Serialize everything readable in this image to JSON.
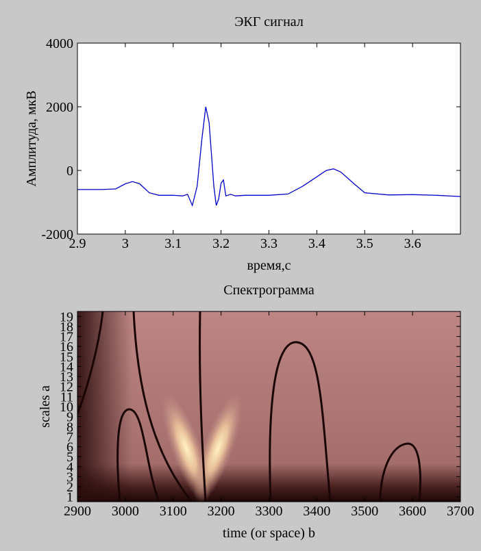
{
  "chart_data": [
    {
      "type": "line",
      "title": "ЭКГ сигнал",
      "xlabel": "время,с",
      "ylabel": "Амплитуда, мкВ",
      "x": [
        2.9,
        2.95,
        2.98,
        3.0,
        3.015,
        3.03,
        3.05,
        3.07,
        3.1,
        3.12,
        3.13,
        3.14,
        3.15,
        3.16,
        3.168,
        3.175,
        3.185,
        3.19,
        3.195,
        3.2,
        3.205,
        3.21,
        3.22,
        3.23,
        3.25,
        3.3,
        3.34,
        3.37,
        3.4,
        3.42,
        3.435,
        3.45,
        3.48,
        3.5,
        3.55,
        3.6,
        3.65,
        3.7
      ],
      "values": [
        -600,
        -600,
        -580,
        -420,
        -350,
        -420,
        -700,
        -780,
        -780,
        -800,
        -750,
        -1100,
        -500,
        1000,
        2000,
        1500,
        -500,
        -1100,
        -900,
        -400,
        -300,
        -800,
        -750,
        -800,
        -780,
        -780,
        -740,
        -500,
        -200,
        0,
        50,
        -50,
        -450,
        -700,
        -770,
        -760,
        -780,
        -820
      ],
      "color": "#0000cc",
      "xlim": [
        2.9,
        3.7
      ],
      "xticks": [
        2.9,
        3,
        3.1,
        3.2,
        3.3,
        3.4,
        3.5,
        3.6
      ],
      "ylim": [
        -2000,
        4000
      ],
      "yticks": [
        -2000,
        0,
        2000,
        4000
      ]
    },
    {
      "type": "spectrogram",
      "title": "Спектрограмма",
      "xlabel": "time (or space) b",
      "ylabel": "scales a",
      "xlim": [
        2900,
        3700
      ],
      "xticks": [
        2900,
        3000,
        3100,
        3200,
        3300,
        3400,
        3500,
        3600,
        3700
      ],
      "ylim": [
        0.5,
        19.5
      ],
      "yticks": [
        1,
        2,
        3,
        4,
        5,
        6,
        7,
        8,
        9,
        10,
        11,
        12,
        13,
        14,
        15,
        16,
        17,
        18,
        19
      ]
    }
  ]
}
